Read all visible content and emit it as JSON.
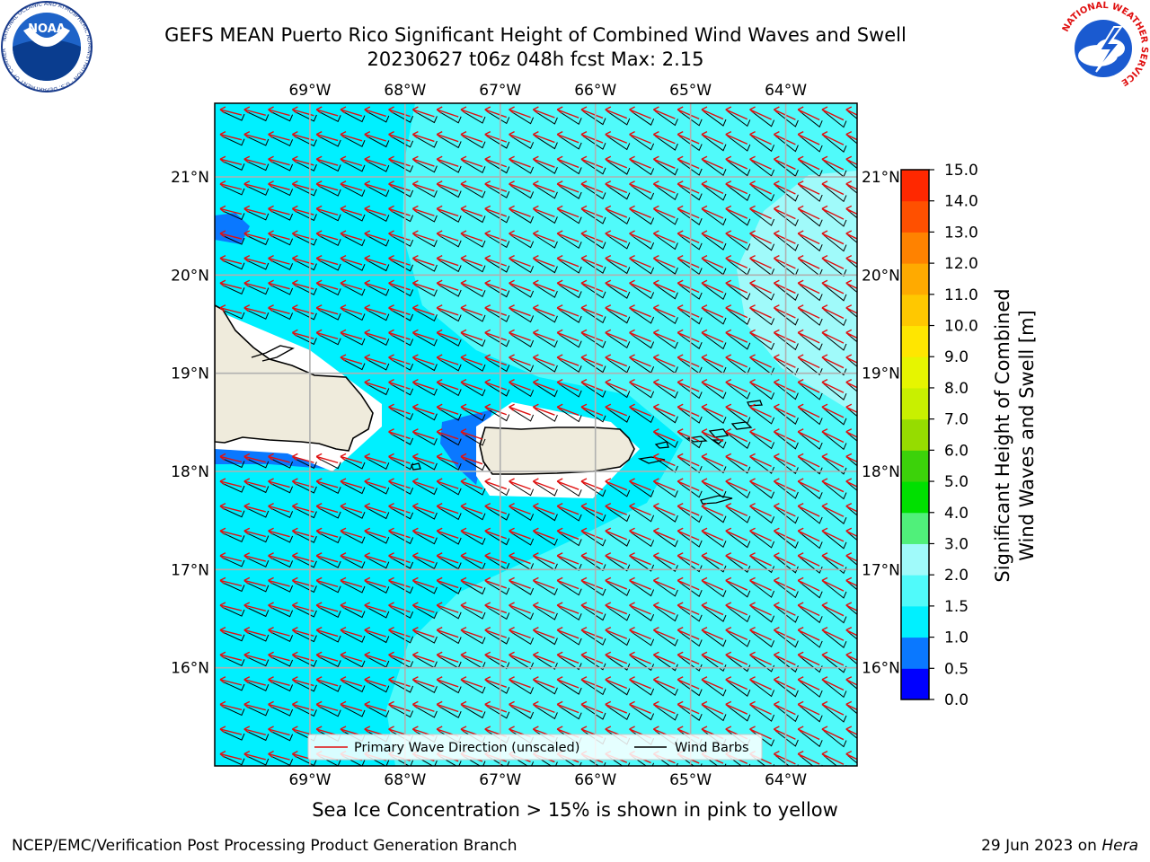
{
  "title": {
    "line1": "GEFS MEAN Puerto Rico Significant Height of Combined Wind Waves and Swell",
    "line2": "20230627 t06z 048h fcst   Max: 2.15"
  },
  "map": {
    "lon_labels": [
      "69°W",
      "68°W",
      "67°W",
      "66°W",
      "65°W",
      "64°W"
    ],
    "lat_labels": [
      "21°N",
      "20°N",
      "19°N",
      "18°N",
      "17°N",
      "16°N"
    ],
    "lon_range": [
      -70.0,
      -63.25
    ],
    "lat_range": [
      15.0,
      21.75
    ]
  },
  "legend": {
    "wave_direction": "Primary Wave Direction (unscaled)",
    "wind_barbs": "Wind Barbs"
  },
  "colorbar": {
    "label_line1": "Significant Height of Combined",
    "label_line2": "Wind Waves and Swell [m]",
    "ticks": [
      "0.0",
      "0.5",
      "1.0",
      "1.5",
      "2.0",
      "3.0",
      "4.0",
      "5.0",
      "6.0",
      "7.0",
      "8.0",
      "9.0",
      "10.0",
      "11.0",
      "12.0",
      "13.0",
      "14.0",
      "15.0"
    ],
    "colors": [
      "#0000ff",
      "#0a78ff",
      "#00f0ff",
      "#50fafa",
      "#a0fafa",
      "#50f07a",
      "#00e000",
      "#3cd20a",
      "#96dc00",
      "#c8f000",
      "#e6f500",
      "#ffe600",
      "#ffc800",
      "#ffaa00",
      "#ff8200",
      "#ff5000",
      "#ff2800",
      "#ff0000"
    ]
  },
  "sea_ice_note": "Sea Ice Concentration > 15% is shown in pink to yellow",
  "footer": {
    "left": "NCEP/EMC/Verification Post Processing Product Generation Branch",
    "date": "29 Jun 2023 on ",
    "machine": "Hera"
  },
  "logos": {
    "noaa_text": "NOAA",
    "noaa_ring": "NATIONAL OCEANIC AND ATMOSPHERIC ADMINISTRATION · U.S. DEPARTMENT OF COMMERCE ·",
    "nws_ring": "NATIONAL WEATHER SERVICE"
  }
}
